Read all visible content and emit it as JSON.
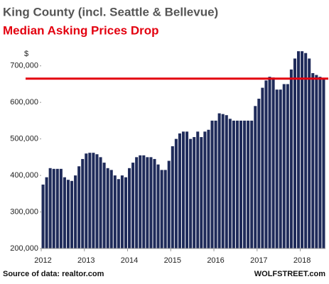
{
  "chart_data": {
    "type": "bar",
    "title": "King County (incl. Seattle & Bellevue)",
    "subtitle": "Median Asking Prices Drop",
    "y_unit": "$",
    "source": "Source of data: realtor.com",
    "credit": "WOLFSTREET.com",
    "color": "#1f2b5a",
    "reference_line": 665000,
    "reference_color": "#e3000f",
    "categories": [
      "2012",
      null,
      null,
      null,
      null,
      null,
      null,
      null,
      null,
      null,
      null,
      null,
      "2013",
      null,
      null,
      null,
      null,
      null,
      null,
      null,
      null,
      null,
      null,
      null,
      "2014",
      null,
      null,
      null,
      null,
      null,
      null,
      null,
      null,
      null,
      null,
      null,
      "2015",
      null,
      null,
      null,
      null,
      null,
      null,
      null,
      null,
      null,
      null,
      null,
      "2016",
      null,
      null,
      null,
      null,
      null,
      null,
      null,
      null,
      null,
      null,
      null,
      "2017",
      null,
      null,
      null,
      null,
      null,
      null,
      null,
      null,
      null,
      null,
      null,
      "2018",
      null,
      null,
      null,
      null,
      null,
      null
    ],
    "values": [
      375000,
      395000,
      420000,
      418000,
      418000,
      418000,
      395000,
      388000,
      385000,
      400000,
      425000,
      445000,
      460000,
      462000,
      462000,
      458000,
      450000,
      435000,
      420000,
      415000,
      400000,
      390000,
      400000,
      395000,
      420000,
      435000,
      450000,
      455000,
      455000,
      450000,
      450000,
      445000,
      430000,
      415000,
      415000,
      440000,
      480000,
      500000,
      515000,
      520000,
      520000,
      500000,
      505000,
      520000,
      505000,
      520000,
      525000,
      550000,
      550000,
      570000,
      568000,
      565000,
      555000,
      550000,
      550000,
      550000,
      550000,
      550000,
      550000,
      590000,
      610000,
      640000,
      660000,
      670000,
      668000,
      635000,
      635000,
      650000,
      650000,
      690000,
      720000,
      740000,
      740000,
      735000,
      720000,
      680000,
      675000,
      670000,
      665000
    ],
    "ylim": [
      200000,
      750000
    ],
    "yticks": [
      {
        "value": 200000,
        "label": "200,000"
      },
      {
        "value": 300000,
        "label": "300,000"
      },
      {
        "value": 400000,
        "label": "400,000"
      },
      {
        "value": 500000,
        "label": "500,000"
      },
      {
        "value": 600000,
        "label": "600,000"
      },
      {
        "value": 700000,
        "label": "700,000"
      }
    ]
  }
}
